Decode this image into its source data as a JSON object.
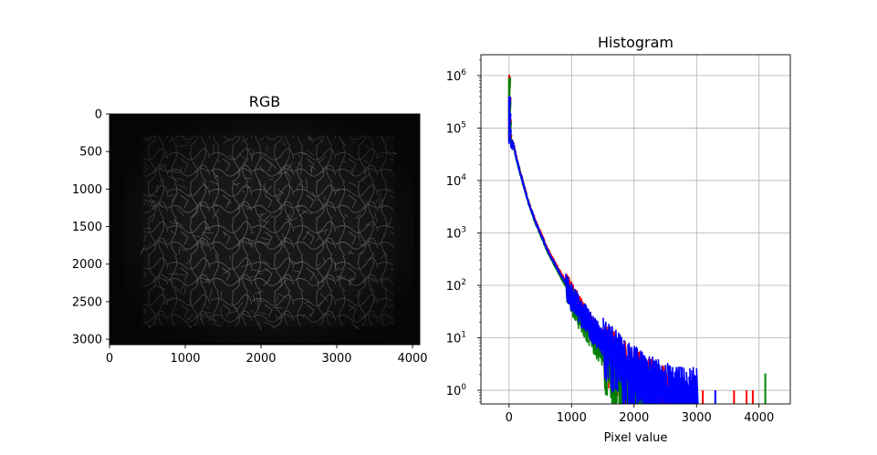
{
  "chart_data": [
    {
      "type": "image",
      "title": "RGB",
      "xlim": [
        0,
        4096
      ],
      "ylim": [
        3072,
        0
      ],
      "xticks": [
        0,
        1000,
        2000,
        3000,
        4000
      ],
      "yticks": [
        0,
        500,
        1000,
        1500,
        2000,
        2500,
        3000
      ],
      "xtick_labels": [
        "0",
        "1000",
        "2000",
        "3000",
        "4000"
      ],
      "ytick_labels": [
        "0",
        "500",
        "1000",
        "1500",
        "2000",
        "2500",
        "3000"
      ],
      "image_description_colors": {
        "background": "#050505",
        "texture": "#6e6e6e"
      },
      "bright_region": {
        "x": [
          450,
          3750
        ],
        "y": [
          290,
          2820
        ]
      }
    },
    {
      "type": "line",
      "title": "Histogram",
      "xlabel": "Pixel value",
      "ylabel": "",
      "yscale": "log",
      "xlim": [
        -450,
        4500
      ],
      "ylim": [
        0.55,
        2500000
      ],
      "grid": true,
      "xticks": [
        0,
        1000,
        2000,
        3000,
        4000
      ],
      "xtick_labels": [
        "0",
        "1000",
        "2000",
        "3000",
        "4000"
      ],
      "ytick_exponents": [
        0,
        1,
        2,
        3,
        4,
        5,
        6
      ],
      "ytick_base": "10",
      "series": [
        {
          "color": "#ff0000",
          "x": [
            0,
            10,
            20,
            30,
            50,
            100,
            200,
            300,
            400,
            500,
            600,
            800,
            1000,
            1200,
            1400,
            1600,
            1800,
            2000,
            2200,
            2400,
            2600
          ],
          "y": [
            1000000,
            200000,
            60000,
            45000,
            60000,
            30000,
            10500,
            4000,
            1900,
            1000,
            520,
            190,
            75,
            30,
            13,
            6,
            3.5,
            2.3,
            1.6,
            1.2,
            1
          ],
          "spikes_x": [
            1700,
            2250,
            2420,
            3100,
            3600,
            3800,
            3900
          ]
        },
        {
          "color": "#008000",
          "x": [
            0,
            10,
            20,
            30,
            50,
            100,
            200,
            300,
            400,
            500,
            600,
            800,
            1000,
            1200,
            1400,
            1600,
            1800,
            2000,
            2200,
            2400
          ],
          "y": [
            900000,
            180000,
            55000,
            45000,
            55000,
            28000,
            10000,
            3800,
            1700,
            900,
            460,
            160,
            60,
            22,
            9,
            4,
            2,
            1.4,
            1.1,
            1
          ],
          "spikes_x": [
            1650,
            2340,
            2520,
            2620,
            4100
          ]
        },
        {
          "color": "#0000ff",
          "x": [
            0,
            10,
            20,
            30,
            50,
            100,
            200,
            300,
            400,
            500,
            600,
            800,
            1000,
            1200,
            1400,
            1600,
            1800,
            2000,
            2200,
            2400,
            2600,
            2800,
            3000
          ],
          "y": [
            400000,
            120000,
            50000,
            42000,
            58000,
            29000,
            10200,
            3900,
            1800,
            950,
            490,
            175,
            70,
            30,
            14,
            7,
            4,
            2.6,
            1.8,
            1.4,
            1.1,
            1,
            1
          ],
          "spikes_x": [
            2170,
            2480,
            2700,
            2870,
            3000,
            3300
          ]
        }
      ]
    }
  ]
}
